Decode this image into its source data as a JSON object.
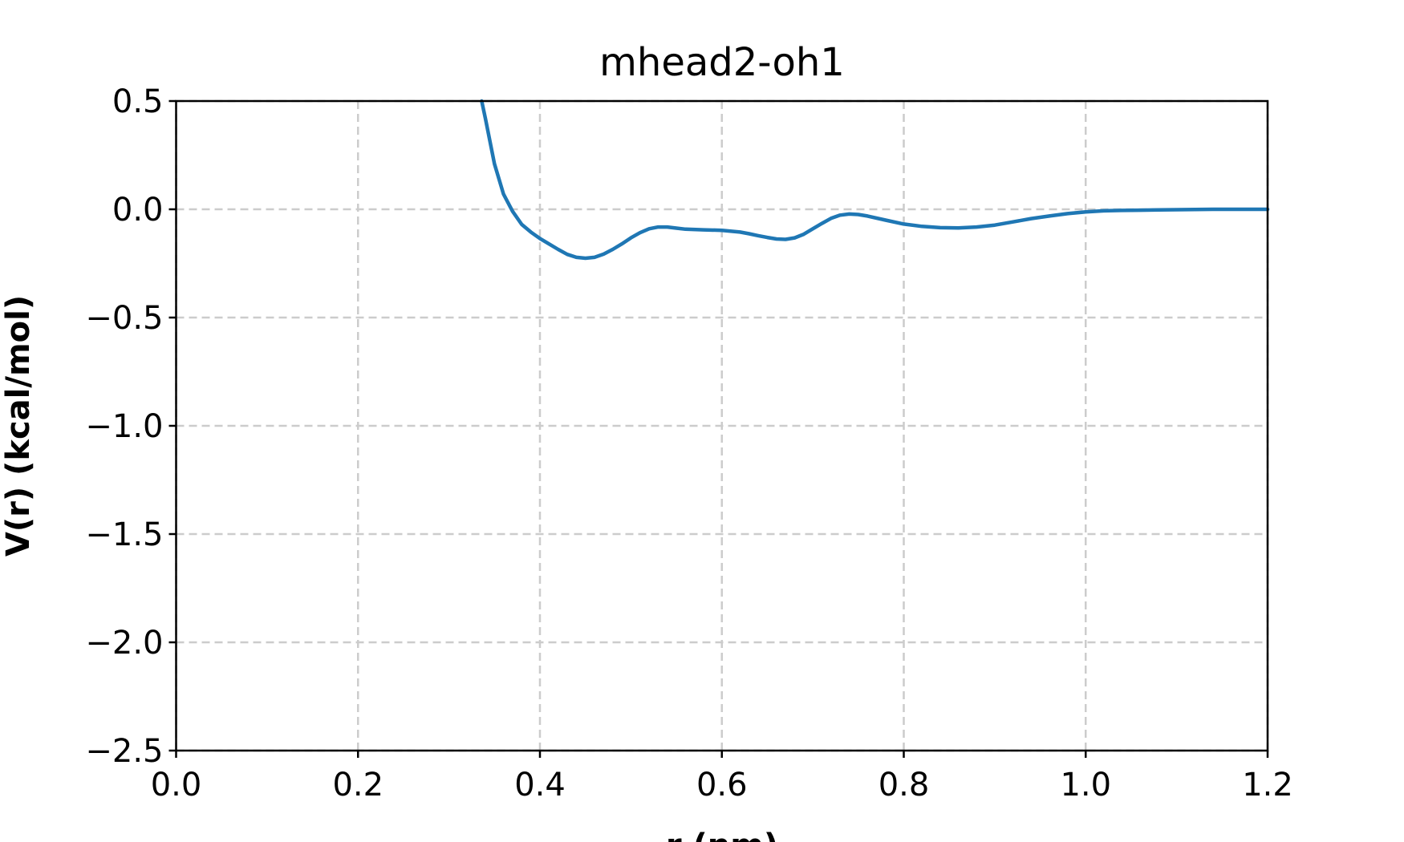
{
  "chart_data": {
    "type": "line",
    "title": "mhead2-oh1",
    "xlabel": "r (nm)",
    "ylabel": "V(r) (kcal/mol)",
    "xlim": [
      0.0,
      1.2
    ],
    "ylim": [
      -2.5,
      0.5
    ],
    "xticks": [
      "0.0",
      "0.2",
      "0.4",
      "0.6",
      "0.8",
      "1.0",
      "1.2"
    ],
    "yticks": [
      "0.5",
      "0.0",
      "−0.5",
      "−1.0",
      "−1.5",
      "−2.0",
      "−2.5"
    ],
    "grid": true,
    "grid_style": "dashed",
    "line_color": "#1f77b4",
    "grid_color": "#cccccc",
    "series": [
      {
        "x": [
          0.336,
          0.34,
          0.35,
          0.36,
          0.37,
          0.38,
          0.39,
          0.4,
          0.41,
          0.42,
          0.43,
          0.44,
          0.45,
          0.46,
          0.47,
          0.48,
          0.49,
          0.5,
          0.51,
          0.52,
          0.53,
          0.54,
          0.55,
          0.56,
          0.58,
          0.6,
          0.62,
          0.63,
          0.64,
          0.65,
          0.66,
          0.67,
          0.68,
          0.69,
          0.7,
          0.71,
          0.72,
          0.73,
          0.74,
          0.75,
          0.76,
          0.78,
          0.8,
          0.82,
          0.84,
          0.86,
          0.88,
          0.9,
          0.92,
          0.94,
          0.96,
          0.98,
          1.0,
          1.02,
          1.04,
          1.06,
          1.08,
          1.1,
          1.12,
          1.14,
          1.16,
          1.18,
          1.2
        ],
        "y": [
          0.5,
          0.42,
          0.21,
          0.07,
          -0.01,
          -0.07,
          -0.105,
          -0.135,
          -0.16,
          -0.185,
          -0.208,
          -0.222,
          -0.226,
          -0.222,
          -0.207,
          -0.185,
          -0.16,
          -0.132,
          -0.108,
          -0.09,
          -0.082,
          -0.082,
          -0.087,
          -0.092,
          -0.095,
          -0.097,
          -0.105,
          -0.113,
          -0.122,
          -0.13,
          -0.137,
          -0.139,
          -0.132,
          -0.115,
          -0.09,
          -0.065,
          -0.042,
          -0.027,
          -0.022,
          -0.024,
          -0.031,
          -0.05,
          -0.068,
          -0.079,
          -0.085,
          -0.086,
          -0.082,
          -0.073,
          -0.058,
          -0.043,
          -0.031,
          -0.02,
          -0.012,
          -0.007,
          -0.005,
          -0.004,
          -0.003,
          -0.002,
          -0.001,
          0.0,
          0.0,
          0.0,
          0.0
        ]
      }
    ]
  }
}
